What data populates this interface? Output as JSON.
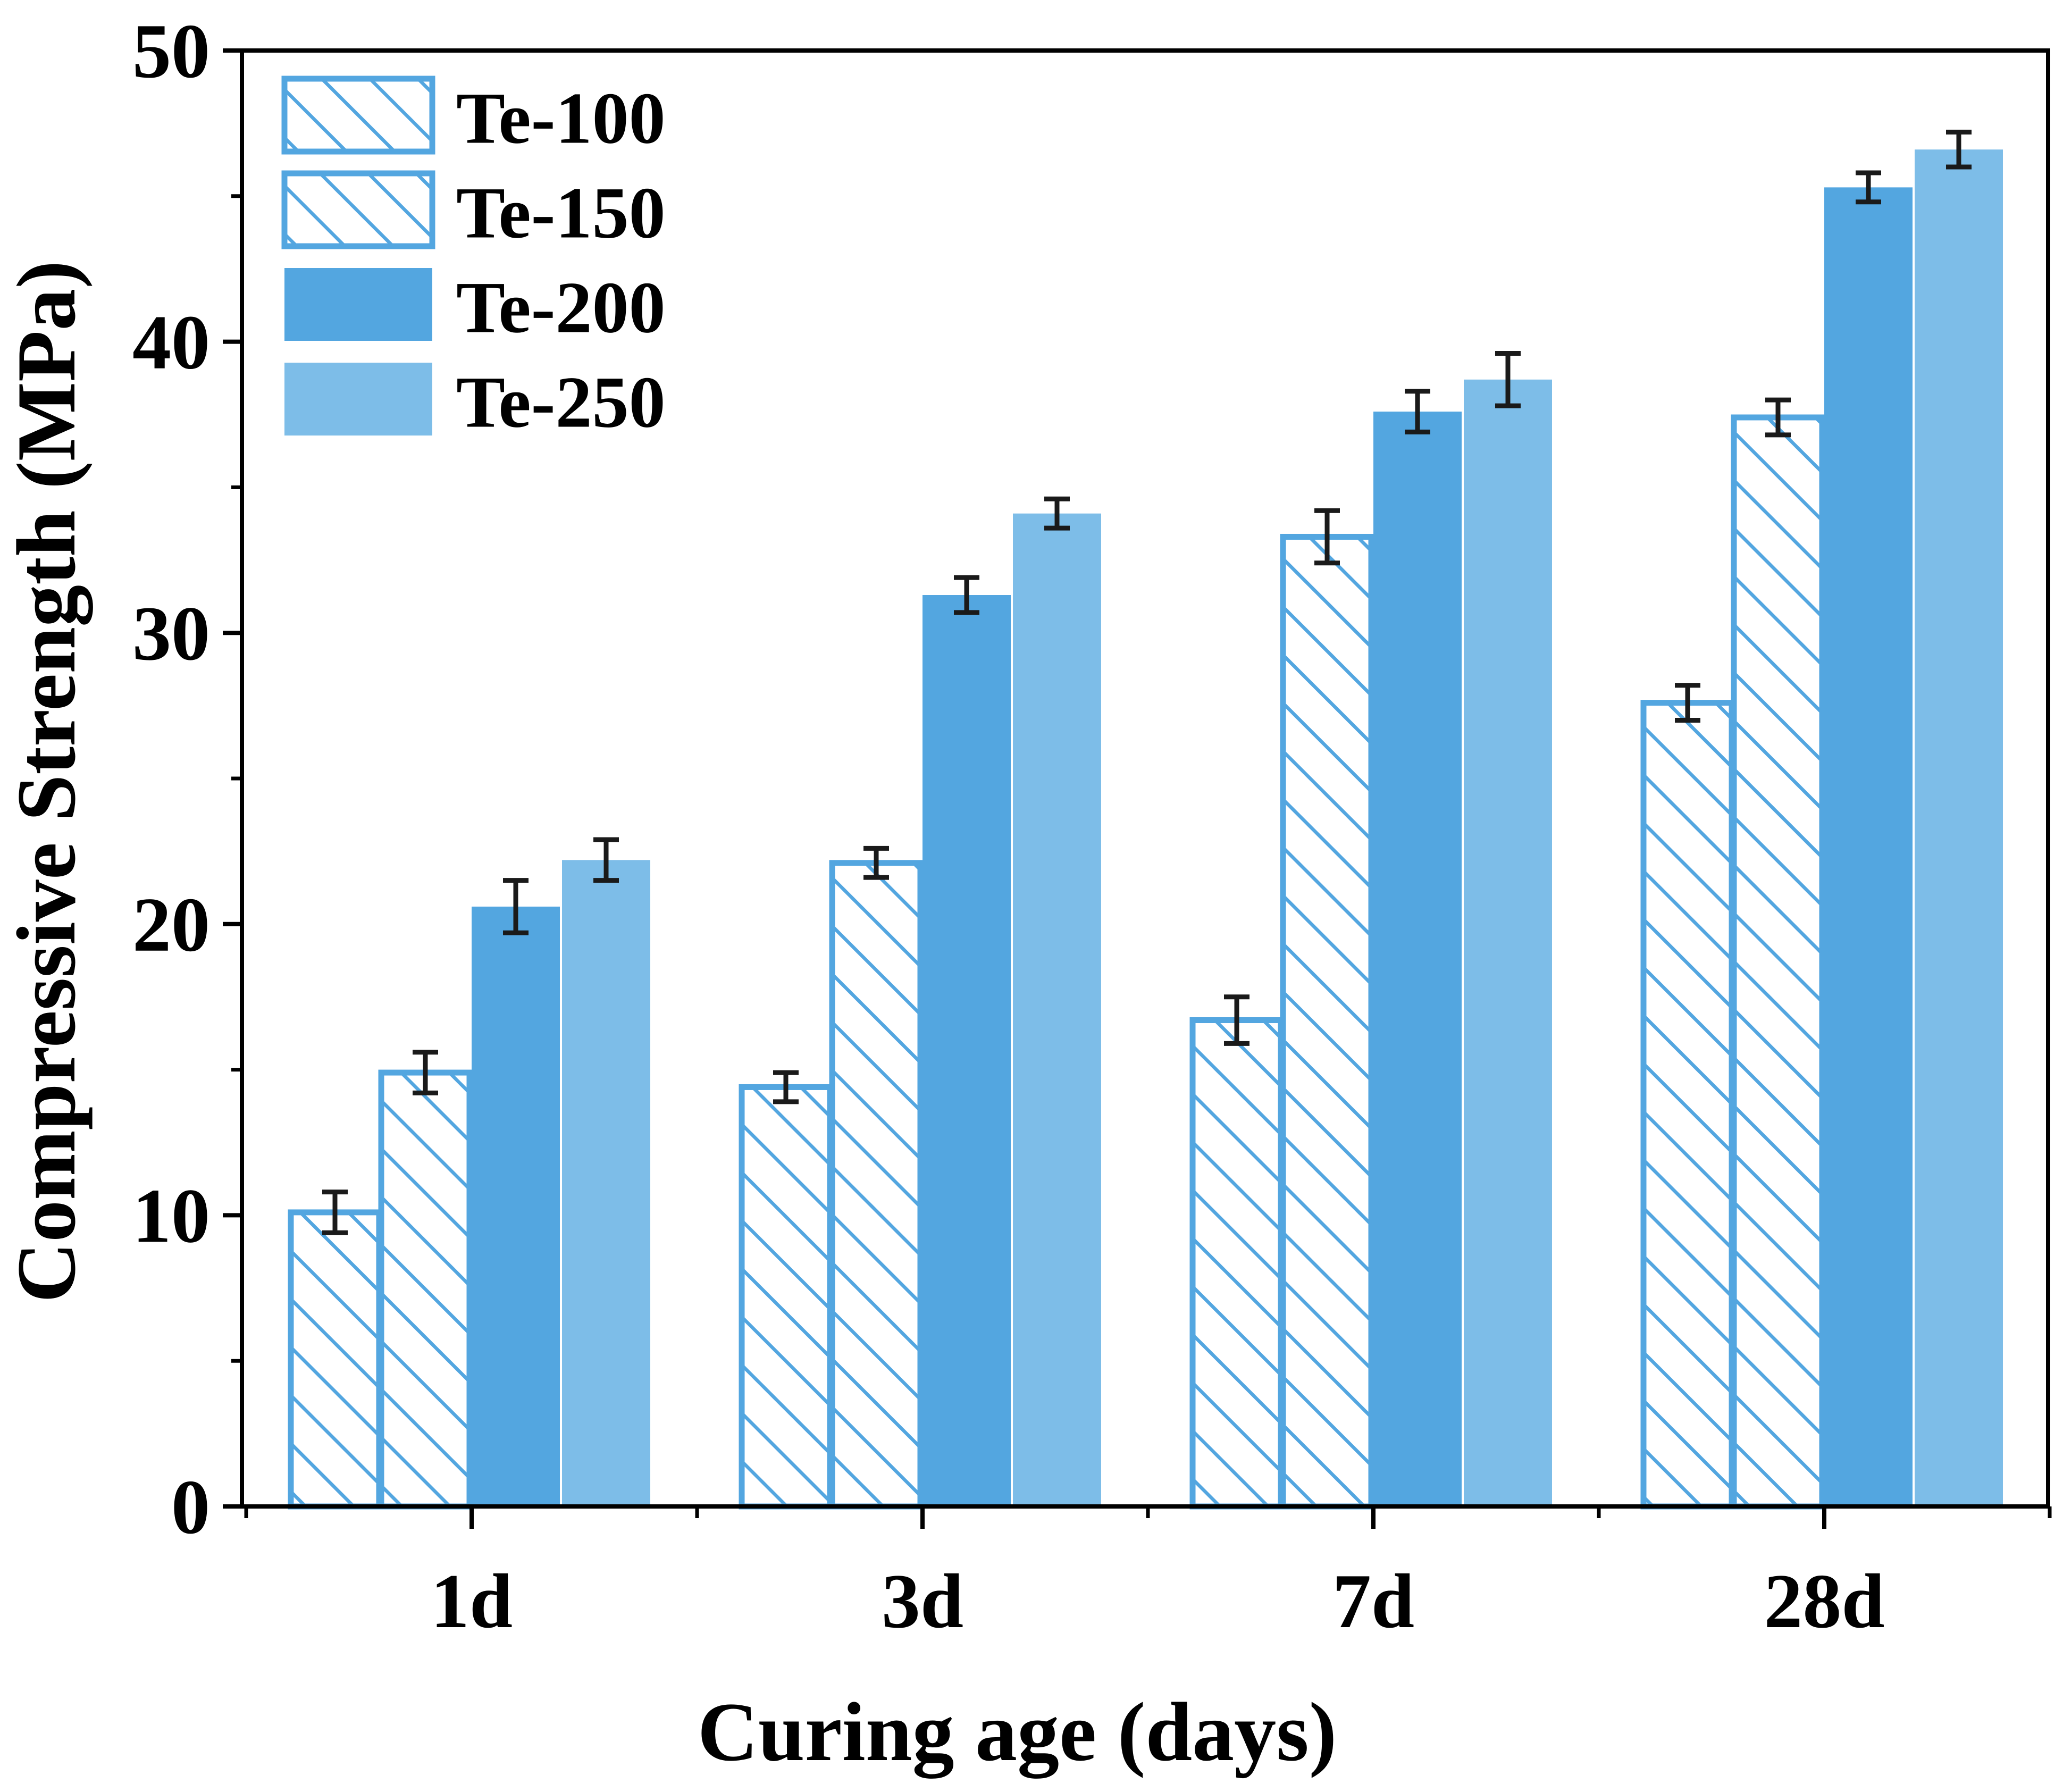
{
  "chart_data": {
    "type": "bar",
    "title": "",
    "xlabel": "Curing age (days)",
    "ylabel": "Compressive Strength (MPa)",
    "categories": [
      "1d",
      "3d",
      "7d",
      "28d"
    ],
    "ylim": [
      0,
      50
    ],
    "yticks": [
      "0",
      "10",
      "20",
      "30",
      "40",
      "50"
    ],
    "grid": false,
    "legend_position": "top-left",
    "series": [
      {
        "name": "Te-100",
        "style": "hatched",
        "color": "#53a6e0",
        "values": [
          10.1,
          14.4,
          16.7,
          27.6
        ],
        "errors": [
          0.7,
          0.5,
          0.8,
          0.6
        ]
      },
      {
        "name": "Te-150",
        "style": "hatched",
        "color": "#53a6e0",
        "values": [
          14.9,
          22.1,
          33.3,
          37.4
        ],
        "errors": [
          0.7,
          0.5,
          0.9,
          0.6
        ]
      },
      {
        "name": "Te-200",
        "style": "solid",
        "color": "#53a6e0",
        "values": [
          20.6,
          31.3,
          37.6,
          45.3
        ],
        "errors": [
          0.9,
          0.6,
          0.7,
          0.5
        ]
      },
      {
        "name": "Te-250",
        "style": "solid",
        "color": "#7dbde8",
        "values": [
          22.2,
          34.1,
          38.7,
          46.6
        ],
        "errors": [
          0.7,
          0.5,
          0.9,
          0.6
        ]
      }
    ]
  }
}
